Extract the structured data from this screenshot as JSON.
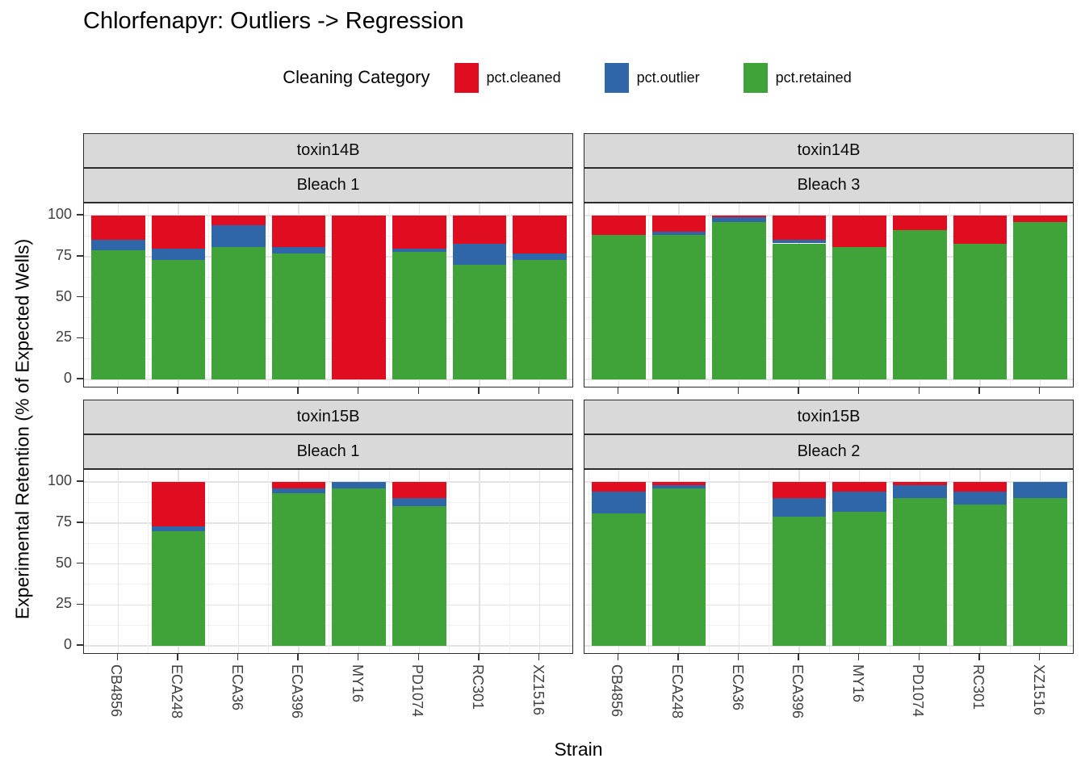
{
  "title": "Chlorfenapyr: Outliers -> Regression",
  "legend": {
    "title": "Cleaning Category",
    "items": [
      {
        "label": "pct.cleaned",
        "color": "#e00c20"
      },
      {
        "label": "pct.outlier",
        "color": "#2f66a7"
      },
      {
        "label": "pct.retained",
        "color": "#3fa33a"
      }
    ]
  },
  "axes": {
    "x_title": "Strain",
    "y_title": "Experimental Retention (% of Expected Wells)",
    "y_ticks": [
      100,
      75,
      50,
      25,
      0
    ],
    "ylim": [
      0,
      100
    ]
  },
  "colors": {
    "cleaned": "#e00c20",
    "outlier": "#2f66a7",
    "retained": "#3fa33a",
    "strip_bg": "#d9d9d9",
    "panel_border": "#2b2b2b",
    "grid_major": "#e3e3e3",
    "grid_minor": "#f0f0f0"
  },
  "chart_data": {
    "type": "bar",
    "stacked": true,
    "unit": "percent",
    "ylim": [
      0,
      100
    ],
    "grid": true,
    "legend_position": "top",
    "categories": [
      "CB4856",
      "ECA248",
      "ECA36",
      "ECA396",
      "MY16",
      "PD1074",
      "RC301",
      "XZ1516"
    ],
    "stack_order_bottom_to_top": [
      "pct.retained",
      "pct.outlier",
      "pct.cleaned"
    ],
    "panels": [
      {
        "facet_row": "toxin14B",
        "facet_col": "Bleach 1",
        "series": [
          {
            "name": "pct.retained",
            "values": [
              79,
              73,
              81,
              77,
              0,
              78,
              70,
              73
            ]
          },
          {
            "name": "pct.outlier",
            "values": [
              6,
              7,
              13,
              4,
              0,
              2,
              13,
              4
            ]
          },
          {
            "name": "pct.cleaned",
            "values": [
              15,
              20,
              6,
              19,
              100,
              20,
              17,
              23
            ]
          }
        ]
      },
      {
        "facet_row": "toxin14B",
        "facet_col": "Bleach 3",
        "series": [
          {
            "name": "pct.retained",
            "values": [
              88,
              88,
              96,
              83,
              81,
              91,
              83,
              96
            ]
          },
          {
            "name": "pct.outlier",
            "values": [
              0,
              2,
              3,
              2,
              0,
              0,
              0,
              0
            ]
          },
          {
            "name": "pct.cleaned",
            "values": [
              12,
              10,
              1,
              15,
              19,
              9,
              17,
              4
            ]
          }
        ]
      },
      {
        "facet_row": "toxin15B",
        "facet_col": "Bleach 1",
        "series": [
          {
            "name": "pct.retained",
            "values": [
              null,
              70,
              null,
              93,
              96,
              85,
              null,
              null
            ]
          },
          {
            "name": "pct.outlier",
            "values": [
              null,
              3,
              null,
              3,
              4,
              5,
              null,
              null
            ]
          },
          {
            "name": "pct.cleaned",
            "values": [
              null,
              27,
              null,
              4,
              0,
              10,
              null,
              null
            ]
          }
        ]
      },
      {
        "facet_row": "toxin15B",
        "facet_col": "Bleach 2",
        "series": [
          {
            "name": "pct.retained",
            "values": [
              81,
              96,
              null,
              79,
              82,
              90,
              86,
              90
            ]
          },
          {
            "name": "pct.outlier",
            "values": [
              13,
              2,
              null,
              11,
              12,
              8,
              8,
              10
            ]
          },
          {
            "name": "pct.cleaned",
            "values": [
              6,
              2,
              null,
              10,
              6,
              2,
              6,
              0
            ]
          }
        ]
      }
    ]
  }
}
